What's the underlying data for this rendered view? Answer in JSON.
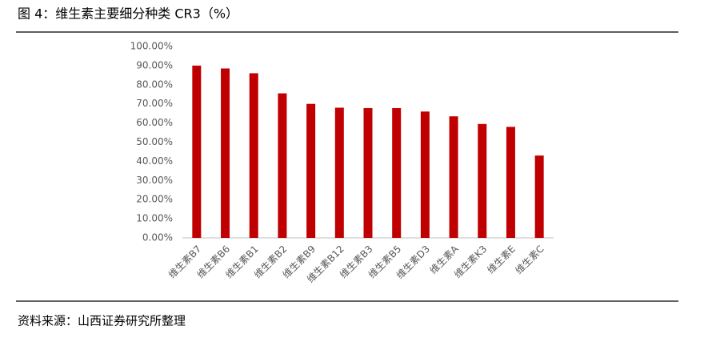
{
  "chart_data": {
    "type": "bar",
    "title": "图 4：维生素主要细分种类 CR3（%）",
    "source": "资料来源：山西证券研究所整理",
    "categories": [
      "维生素B7",
      "维生素B6",
      "维生素B1",
      "维生素B2",
      "维生素B9",
      "维生素B12",
      "维生素B3",
      "维生素B5",
      "维生素D3",
      "维生素A",
      "维生素K3",
      "维生素E",
      "维生素C"
    ],
    "values": [
      90,
      88.5,
      86,
      75.5,
      70,
      68,
      67.8,
      67.8,
      66,
      63.5,
      59.5,
      58,
      43
    ],
    "color": "#c00000",
    "ylim": [
      0,
      100
    ],
    "yticks": [
      {
        "value": 0,
        "label": "0.00%"
      },
      {
        "value": 10,
        "label": "10.00%"
      },
      {
        "value": 20,
        "label": "20.00%"
      },
      {
        "value": 30,
        "label": "30.00%"
      },
      {
        "value": 40,
        "label": "40.00%"
      },
      {
        "value": 50,
        "label": "50.00%"
      },
      {
        "value": 60,
        "label": "60.00%"
      },
      {
        "value": 70,
        "label": "70.00%"
      },
      {
        "value": 80,
        "label": "80.00%"
      },
      {
        "value": 90,
        "label": "90.00%"
      },
      {
        "value": 100,
        "label": "100.00%"
      }
    ],
    "grid": false
  }
}
